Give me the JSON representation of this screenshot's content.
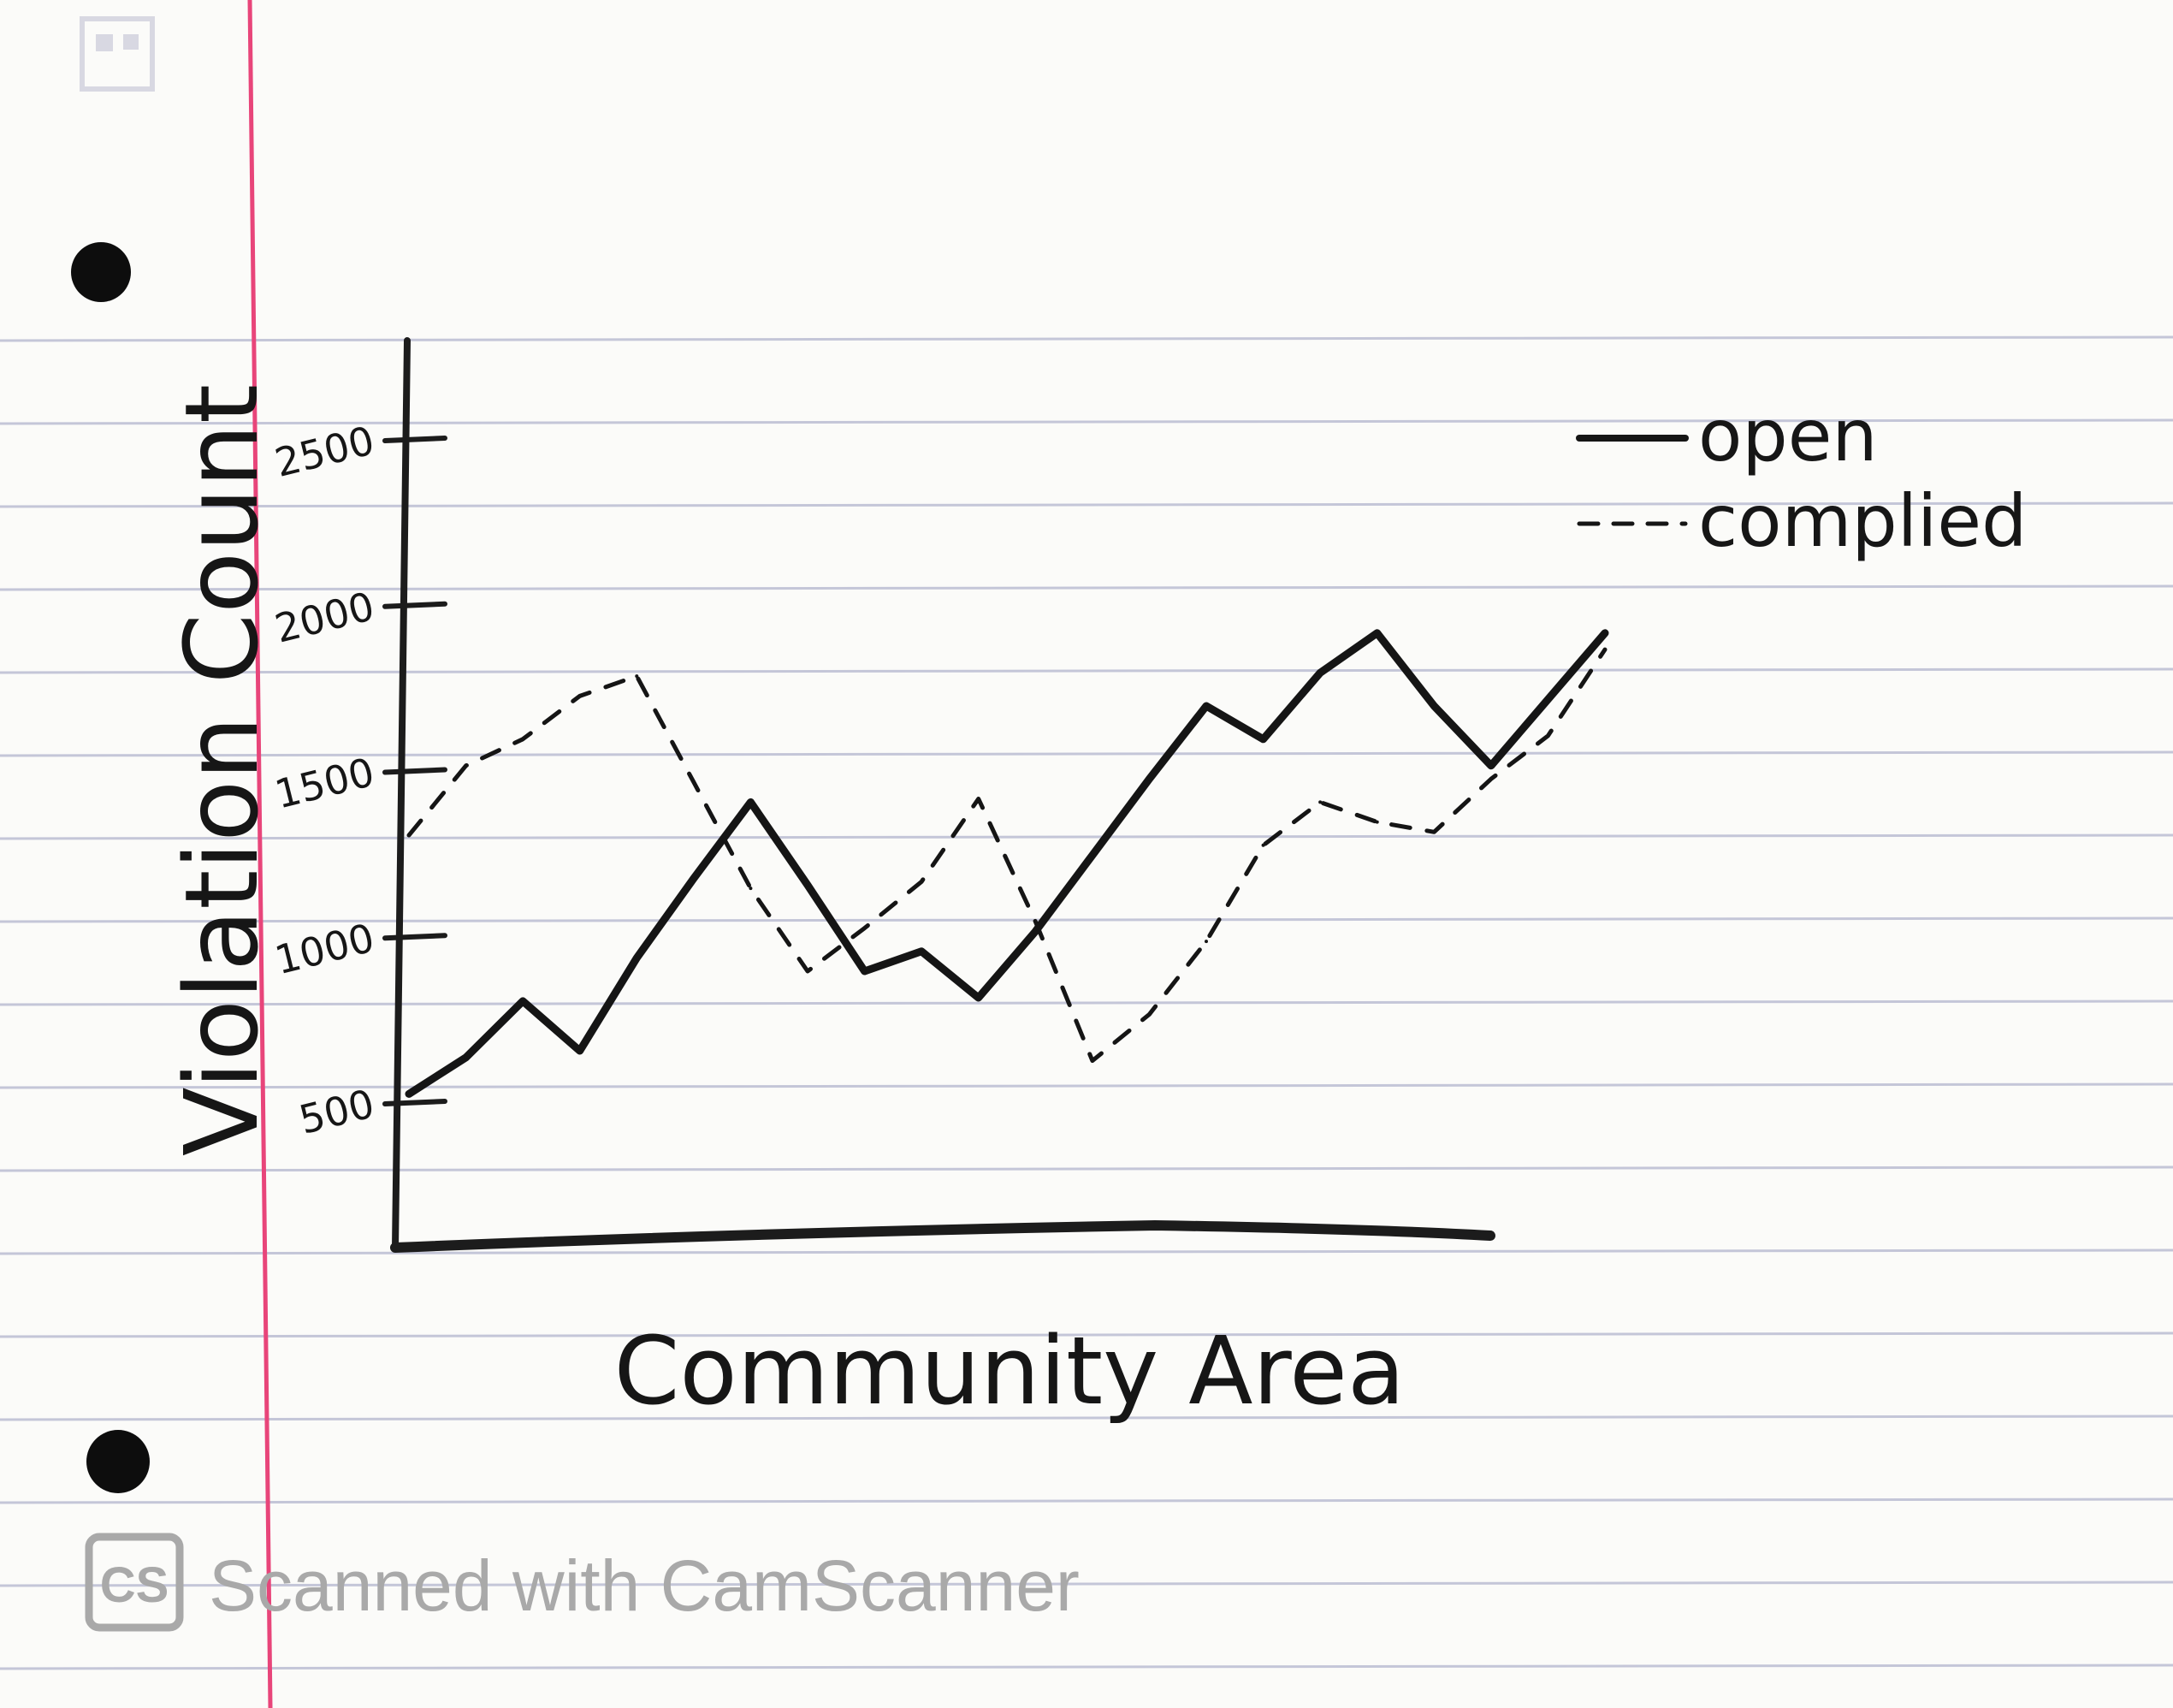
{
  "chart_data": {
    "type": "line",
    "xlabel": "Community Area",
    "ylabel": "Violation Count",
    "y_ticks": [
      "500",
      "1000",
      "1500",
      "2000",
      "2500"
    ],
    "ylim": [
      0,
      2700
    ],
    "grid": false,
    "legend_position": "top-right",
    "x": [
      0,
      1,
      2,
      3,
      4,
      5,
      6,
      7,
      8,
      9,
      10,
      11,
      12,
      13,
      14,
      15,
      16,
      17,
      18,
      19,
      20,
      21
    ],
    "series": [
      {
        "name": "open",
        "style": "solid",
        "values": [
          530,
          640,
          810,
          660,
          940,
          1180,
          1410,
          1160,
          900,
          960,
          820,
          1020,
          1250,
          1480,
          1700,
          1600,
          1800,
          1920,
          1700,
          1520,
          1720,
          1920
        ]
      },
      {
        "name": "complied",
        "style": "dashed",
        "values": [
          1310,
          1520,
          1600,
          1730,
          1790,
          1470,
          1150,
          900,
          1030,
          1170,
          1420,
          1050,
          630,
          770,
          990,
          1280,
          1410,
          1350,
          1320,
          1480,
          1610,
          1870
        ]
      }
    ],
    "legend": [
      {
        "label": "open",
        "style": "solid"
      },
      {
        "label": "complied",
        "style": "dashed"
      }
    ]
  },
  "watermark": {
    "logo_text": "CS",
    "text": "Scanned with CamScanner"
  },
  "colors": {
    "paper": "#fbfbf9",
    "rule_line": "#c4c6d8",
    "margin_line": "#e8457a",
    "ink": "#161616",
    "watermark": "#a9a9a9"
  }
}
